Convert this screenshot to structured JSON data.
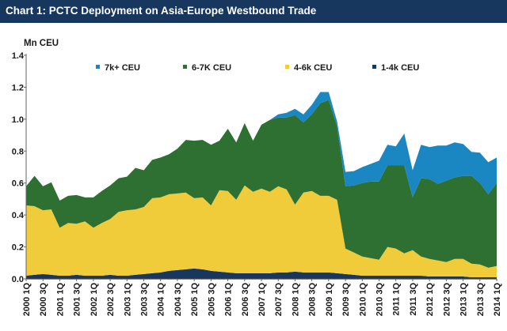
{
  "header": {
    "title": "Chart 1: PCTC Deployment on Asia-Europe Westbound Trade"
  },
  "colors": {
    "title_bg": "#17375e",
    "series_1_4k": "#17375e",
    "series_4_6k": "#f0cc3a",
    "series_6_7k": "#2e7031",
    "series_7k": "#1a86c2"
  },
  "chart_data": {
    "type": "area",
    "stacked": true,
    "title": "Chart 1: PCTC Deployment on Asia-Europe Westbound Trade",
    "ylabel": "Mn CEU",
    "xlabel": "",
    "ylim": [
      0,
      1.4
    ],
    "yticks": [
      "0.0",
      "0.2",
      "0.4",
      "0.6",
      "0.8",
      "1.0",
      "1.2",
      "1.4"
    ],
    "legend_position": "top",
    "x_tick_labels": [
      "2000 1Q",
      "2000 3Q",
      "2001 1Q",
      "2001 3Q",
      "2002 1Q",
      "2002 3Q",
      "2003 1Q",
      "2003 3Q",
      "2004 1Q",
      "2004 3Q",
      "2005 1Q",
      "2005 3Q",
      "2006 1Q",
      "2006 3Q",
      "2007 1Q",
      "2007 3Q",
      "2008 1Q",
      "2008 3Q",
      "2009 1Q",
      "2009 3Q",
      "2010 1Q",
      "2010 3Q",
      "2011 1Q",
      "2011 3Q",
      "2012 1Q",
      "2012 3Q",
      "2013 1Q",
      "2013 3Q",
      "2014 1Q"
    ],
    "n_quarters": 57,
    "series": [
      {
        "name": "1-4k CEU",
        "values": [
          0.02,
          0.025,
          0.03,
          0.025,
          0.02,
          0.02,
          0.025,
          0.02,
          0.02,
          0.02,
          0.025,
          0.02,
          0.02,
          0.025,
          0.03,
          0.035,
          0.04,
          0.05,
          0.055,
          0.06,
          0.065,
          0.06,
          0.05,
          0.045,
          0.04,
          0.035,
          0.035,
          0.035,
          0.035,
          0.035,
          0.04,
          0.04,
          0.045,
          0.04,
          0.04,
          0.04,
          0.04,
          0.035,
          0.03,
          0.025,
          0.02,
          0.02,
          0.02,
          0.02,
          0.02,
          0.02,
          0.02,
          0.02,
          0.015,
          0.015,
          0.015,
          0.015,
          0.015,
          0.01,
          0.01,
          0.01,
          0.01
        ]
      },
      {
        "name": "4-6k CEU",
        "values": [
          0.44,
          0.43,
          0.4,
          0.41,
          0.3,
          0.33,
          0.32,
          0.34,
          0.3,
          0.33,
          0.35,
          0.4,
          0.41,
          0.41,
          0.42,
          0.47,
          0.47,
          0.48,
          0.48,
          0.48,
          0.44,
          0.45,
          0.41,
          0.51,
          0.51,
          0.46,
          0.55,
          0.51,
          0.53,
          0.51,
          0.54,
          0.52,
          0.42,
          0.5,
          0.51,
          0.48,
          0.48,
          0.46,
          0.16,
          0.14,
          0.12,
          0.11,
          0.1,
          0.18,
          0.17,
          0.14,
          0.16,
          0.12,
          0.11,
          0.1,
          0.09,
          0.11,
          0.11,
          0.085,
          0.08,
          0.06,
          0.07
        ]
      },
      {
        "name": "6-7K CEU",
        "values": [
          0.12,
          0.19,
          0.15,
          0.17,
          0.17,
          0.17,
          0.18,
          0.15,
          0.19,
          0.2,
          0.21,
          0.21,
          0.21,
          0.26,
          0.23,
          0.24,
          0.25,
          0.25,
          0.28,
          0.33,
          0.36,
          0.36,
          0.38,
          0.31,
          0.39,
          0.36,
          0.39,
          0.32,
          0.4,
          0.45,
          0.43,
          0.45,
          0.56,
          0.44,
          0.48,
          0.58,
          0.6,
          0.46,
          0.39,
          0.42,
          0.46,
          0.48,
          0.49,
          0.51,
          0.52,
          0.55,
          0.33,
          0.49,
          0.5,
          0.48,
          0.51,
          0.51,
          0.52,
          0.55,
          0.51,
          0.46,
          0.52
        ]
      },
      {
        "name": "7k+ CEU",
        "values": [
          0,
          0,
          0,
          0,
          0,
          0,
          0,
          0,
          0,
          0,
          0,
          0,
          0,
          0,
          0,
          0,
          0,
          0,
          0,
          0,
          0,
          0,
          0,
          0,
          0,
          0,
          0,
          0,
          0,
          0,
          0.02,
          0.03,
          0.04,
          0.05,
          0.06,
          0.07,
          0.05,
          0.03,
          0.09,
          0.09,
          0.1,
          0.11,
          0.13,
          0.13,
          0.12,
          0.2,
          0.17,
          0.21,
          0.2,
          0.24,
          0.22,
          0.22,
          0.2,
          0.15,
          0.19,
          0.2,
          0.16
        ]
      }
    ]
  }
}
